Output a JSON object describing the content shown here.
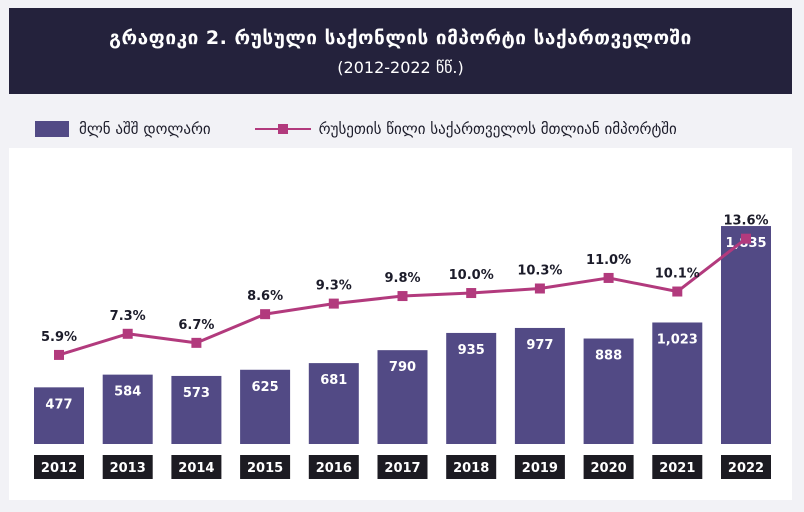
{
  "header": {
    "title": "გრაფიკი 2. რუსული საქონლის იმპორტი საქართველოში",
    "subtitle": "(2012-2022 წწ.)"
  },
  "legend": {
    "bar_label": "მლნ აშშ დოლარი",
    "line_label": "რუსეთის წილი საქართველოს მთლიან იმპორტში"
  },
  "colors": {
    "bar": "#524a85",
    "line": "#b23a7d",
    "year_box": "#1c1b22",
    "header": "#24223c"
  },
  "chart_data": {
    "type": "bar",
    "categories": [
      "2012",
      "2013",
      "2014",
      "2015",
      "2016",
      "2017",
      "2018",
      "2019",
      "2020",
      "2021",
      "2022"
    ],
    "series": [
      {
        "name": "მლნ აშშ დოლარი",
        "type": "bar",
        "values": [
          477,
          584,
          573,
          625,
          681,
          790,
          935,
          977,
          888,
          1023,
          1835
        ],
        "labels": [
          "477",
          "584",
          "573",
          "625",
          "681",
          "790",
          "935",
          "977",
          "888",
          "1,023",
          "1,835"
        ]
      },
      {
        "name": "რუსეთის წილი საქართველოს მთლიან იმპორტში",
        "type": "line",
        "values": [
          5.9,
          7.3,
          6.7,
          8.6,
          9.3,
          9.8,
          10.0,
          10.3,
          11.0,
          10.1,
          13.6
        ],
        "labels": [
          "5.9%",
          "7.3%",
          "6.7%",
          "8.6%",
          "9.3%",
          "9.8%",
          "10.0%",
          "10.3%",
          "11.0%",
          "10.1%",
          "13.6%"
        ]
      }
    ],
    "bar_ylim": [
      0,
      1970
    ],
    "line_ylim": [
      0,
      15.5
    ],
    "grid": false,
    "legend_position": "top-left"
  }
}
